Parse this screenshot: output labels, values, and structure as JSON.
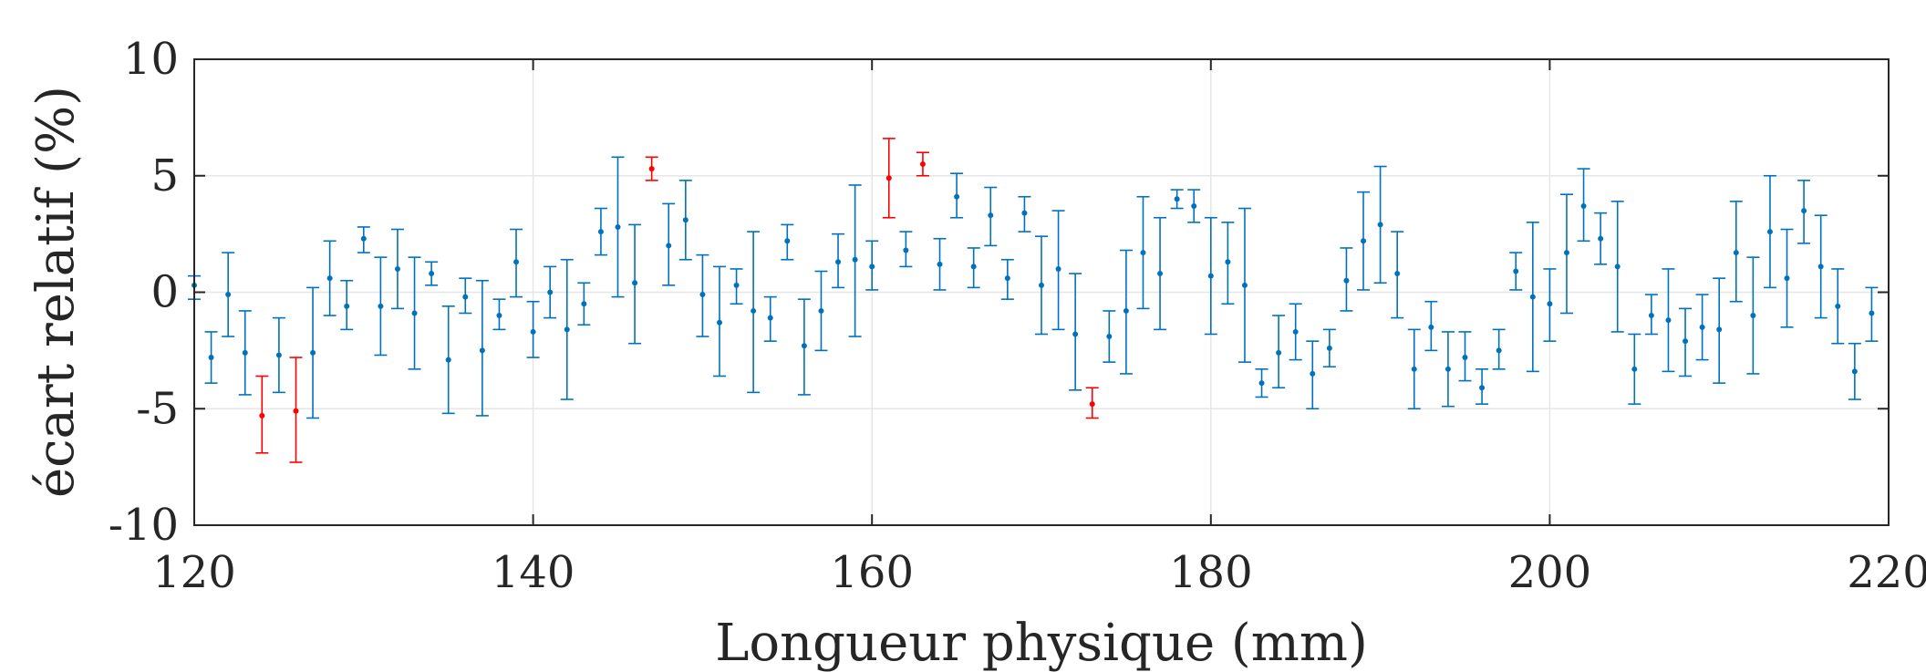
{
  "chart_data": {
    "type": "scatter",
    "title": "",
    "xlabel": "Longueur physique (mm)",
    "ylabel": "écart relatif (%)",
    "xlim": [
      120,
      220
    ],
    "ylim": [
      -10,
      10
    ],
    "xticks": [
      "120",
      "140",
      "160",
      "180",
      "200",
      "220"
    ],
    "yticks": [
      "10",
      "5",
      "0",
      "-5",
      "-10"
    ],
    "grid": true,
    "legend": "none",
    "error_bars": true,
    "series": [
      {
        "color": "#0072BD",
        "points": [
          {
            "x": 120,
            "y": 0.3,
            "lo": -0.3,
            "hi": 0.7
          },
          {
            "x": 121,
            "y": -2.8,
            "lo": -3.9,
            "hi": -1.7
          },
          {
            "x": 122,
            "y": -0.1,
            "lo": -1.9,
            "hi": 1.7
          },
          {
            "x": 123,
            "y": -2.6,
            "lo": -4.4,
            "hi": -0.8
          },
          {
            "x": 125,
            "y": -2.7,
            "lo": -4.3,
            "hi": -1.1
          },
          {
            "x": 127,
            "y": -2.6,
            "lo": -5.4,
            "hi": 0.2
          },
          {
            "x": 128,
            "y": 0.6,
            "lo": -1.0,
            "hi": 2.2
          },
          {
            "x": 129,
            "y": -0.6,
            "lo": -1.6,
            "hi": 0.5
          },
          {
            "x": 130,
            "y": 2.3,
            "lo": 1.7,
            "hi": 2.8
          },
          {
            "x": 131,
            "y": -0.6,
            "lo": -2.7,
            "hi": 1.5
          },
          {
            "x": 132,
            "y": 1.0,
            "lo": -0.7,
            "hi": 2.7
          },
          {
            "x": 133,
            "y": -0.9,
            "lo": -3.3,
            "hi": 1.5
          },
          {
            "x": 134,
            "y": 0.8,
            "lo": 0.3,
            "hi": 1.3
          },
          {
            "x": 135,
            "y": -2.9,
            "lo": -5.2,
            "hi": -0.6
          },
          {
            "x": 136,
            "y": -0.2,
            "lo": -0.9,
            "hi": 0.6
          },
          {
            "x": 137,
            "y": -2.5,
            "lo": -5.3,
            "hi": 0.5
          },
          {
            "x": 138,
            "y": -1.0,
            "lo": -1.6,
            "hi": -0.3
          },
          {
            "x": 139,
            "y": 1.3,
            "lo": -0.2,
            "hi": 2.7
          },
          {
            "x": 140,
            "y": -1.7,
            "lo": -2.8,
            "hi": -0.4
          },
          {
            "x": 141,
            "y": 0.0,
            "lo": -1.1,
            "hi": 1.1
          },
          {
            "x": 142,
            "y": -1.6,
            "lo": -4.6,
            "hi": 1.4
          },
          {
            "x": 143,
            "y": -0.5,
            "lo": -1.4,
            "hi": 0.4
          },
          {
            "x": 144,
            "y": 2.6,
            "lo": 1.6,
            "hi": 3.6
          },
          {
            "x": 145,
            "y": 2.8,
            "lo": -0.2,
            "hi": 5.8
          },
          {
            "x": 146,
            "y": 0.4,
            "lo": -2.2,
            "hi": 2.9
          },
          {
            "x": 148,
            "y": 2.0,
            "lo": 0.3,
            "hi": 3.8
          },
          {
            "x": 149,
            "y": 3.1,
            "lo": 1.4,
            "hi": 4.8
          },
          {
            "x": 150,
            "y": -0.1,
            "lo": -1.9,
            "hi": 1.6
          },
          {
            "x": 151,
            "y": -1.3,
            "lo": -3.6,
            "hi": 1.1
          },
          {
            "x": 152,
            "y": 0.3,
            "lo": -0.5,
            "hi": 1.0
          },
          {
            "x": 153,
            "y": -0.8,
            "lo": -4.3,
            "hi": 2.6
          },
          {
            "x": 154,
            "y": -1.1,
            "lo": -2.1,
            "hi": -0.2
          },
          {
            "x": 155,
            "y": 2.2,
            "lo": 1.4,
            "hi": 2.9
          },
          {
            "x": 156,
            "y": -2.3,
            "lo": -4.4,
            "hi": -0.3
          },
          {
            "x": 157,
            "y": -0.8,
            "lo": -2.5,
            "hi": 0.9
          },
          {
            "x": 158,
            "y": 1.3,
            "lo": 0.2,
            "hi": 2.5
          },
          {
            "x": 159,
            "y": 1.4,
            "lo": -1.9,
            "hi": 4.6
          },
          {
            "x": 160,
            "y": 1.1,
            "lo": 0.1,
            "hi": 2.2
          },
          {
            "x": 162,
            "y": 1.8,
            "lo": 1.1,
            "hi": 2.6
          },
          {
            "x": 164,
            "y": 1.2,
            "lo": 0.1,
            "hi": 2.3
          },
          {
            "x": 165,
            "y": 4.1,
            "lo": 3.2,
            "hi": 5.1
          },
          {
            "x": 166,
            "y": 1.1,
            "lo": 0.2,
            "hi": 1.9
          },
          {
            "x": 167,
            "y": 3.3,
            "lo": 2.0,
            "hi": 4.5
          },
          {
            "x": 168,
            "y": 0.6,
            "lo": -0.3,
            "hi": 1.4
          },
          {
            "x": 169,
            "y": 3.4,
            "lo": 2.6,
            "hi": 4.1
          },
          {
            "x": 170,
            "y": 0.3,
            "lo": -1.8,
            "hi": 2.4
          },
          {
            "x": 171,
            "y": 1.0,
            "lo": -1.6,
            "hi": 3.5
          },
          {
            "x": 172,
            "y": -1.8,
            "lo": -4.2,
            "hi": 0.8
          },
          {
            "x": 174,
            "y": -1.9,
            "lo": -3.0,
            "hi": -0.8
          },
          {
            "x": 175,
            "y": -0.8,
            "lo": -3.5,
            "hi": 1.8
          },
          {
            "x": 176,
            "y": 1.7,
            "lo": -0.7,
            "hi": 4.1
          },
          {
            "x": 177,
            "y": 0.8,
            "lo": -1.6,
            "hi": 3.2
          },
          {
            "x": 178,
            "y": 4.0,
            "lo": 3.6,
            "hi": 4.4
          },
          {
            "x": 179,
            "y": 3.7,
            "lo": 3.0,
            "hi": 4.4
          },
          {
            "x": 180,
            "y": 0.7,
            "lo": -1.8,
            "hi": 3.2
          },
          {
            "x": 181,
            "y": 1.3,
            "lo": -0.5,
            "hi": 3.0
          },
          {
            "x": 182,
            "y": 0.3,
            "lo": -3.0,
            "hi": 3.6
          },
          {
            "x": 183,
            "y": -3.9,
            "lo": -4.5,
            "hi": -3.3
          },
          {
            "x": 184,
            "y": -2.6,
            "lo": -4.1,
            "hi": -1.0
          },
          {
            "x": 185,
            "y": -1.7,
            "lo": -2.9,
            "hi": -0.5
          },
          {
            "x": 186,
            "y": -3.5,
            "lo": -5.0,
            "hi": -2.1
          },
          {
            "x": 187,
            "y": -2.4,
            "lo": -3.2,
            "hi": -1.6
          },
          {
            "x": 188,
            "y": 0.5,
            "lo": -0.8,
            "hi": 1.9
          },
          {
            "x": 189,
            "y": 2.2,
            "lo": 0.1,
            "hi": 4.3
          },
          {
            "x": 190,
            "y": 2.9,
            "lo": 0.4,
            "hi": 5.4
          },
          {
            "x": 191,
            "y": 0.8,
            "lo": -1.1,
            "hi": 2.6
          },
          {
            "x": 192,
            "y": -3.3,
            "lo": -5.0,
            "hi": -1.6
          },
          {
            "x": 193,
            "y": -1.5,
            "lo": -2.5,
            "hi": -0.4
          },
          {
            "x": 194,
            "y": -3.3,
            "lo": -4.9,
            "hi": -1.7
          },
          {
            "x": 195,
            "y": -2.8,
            "lo": -3.8,
            "hi": -1.7
          },
          {
            "x": 196,
            "y": -4.1,
            "lo": -4.8,
            "hi": -3.3
          },
          {
            "x": 197,
            "y": -2.5,
            "lo": -3.3,
            "hi": -1.6
          },
          {
            "x": 198,
            "y": 0.9,
            "lo": 0.1,
            "hi": 1.7
          },
          {
            "x": 199,
            "y": -0.2,
            "lo": -3.4,
            "hi": 3.0
          },
          {
            "x": 200,
            "y": -0.5,
            "lo": -2.1,
            "hi": 1.0
          },
          {
            "x": 201,
            "y": 1.7,
            "lo": -0.9,
            "hi": 4.2
          },
          {
            "x": 202,
            "y": 3.7,
            "lo": 2.2,
            "hi": 5.3
          },
          {
            "x": 203,
            "y": 2.3,
            "lo": 1.2,
            "hi": 3.4
          },
          {
            "x": 204,
            "y": 1.1,
            "lo": -1.7,
            "hi": 3.9
          },
          {
            "x": 205,
            "y": -3.3,
            "lo": -4.8,
            "hi": -1.8
          },
          {
            "x": 206,
            "y": -1.0,
            "lo": -1.8,
            "hi": -0.1
          },
          {
            "x": 207,
            "y": -1.2,
            "lo": -3.4,
            "hi": 1.0
          },
          {
            "x": 208,
            "y": -2.1,
            "lo": -3.6,
            "hi": -0.7
          },
          {
            "x": 209,
            "y": -1.5,
            "lo": -2.9,
            "hi": -0.1
          },
          {
            "x": 210,
            "y": -1.6,
            "lo": -3.9,
            "hi": 0.6
          },
          {
            "x": 211,
            "y": 1.7,
            "lo": -0.4,
            "hi": 3.9
          },
          {
            "x": 212,
            "y": -1.0,
            "lo": -3.5,
            "hi": 1.5
          },
          {
            "x": 213,
            "y": 2.6,
            "lo": 0.2,
            "hi": 5.0
          },
          {
            "x": 214,
            "y": 0.6,
            "lo": -1.5,
            "hi": 2.7
          },
          {
            "x": 215,
            "y": 3.5,
            "lo": 2.1,
            "hi": 4.8
          },
          {
            "x": 216,
            "y": 1.1,
            "lo": -1.1,
            "hi": 3.3
          },
          {
            "x": 217,
            "y": -0.6,
            "lo": -2.2,
            "hi": 1.0
          },
          {
            "x": 218,
            "y": -3.4,
            "lo": -4.6,
            "hi": -2.2
          },
          {
            "x": 219,
            "y": -0.9,
            "lo": -2.1,
            "hi": 0.2
          }
        ]
      },
      {
        "color": "#FF0000",
        "points": [
          {
            "x": 124,
            "y": -5.3,
            "lo": -6.9,
            "hi": -3.6
          },
          {
            "x": 126,
            "y": -5.1,
            "lo": -7.3,
            "hi": -2.8
          },
          {
            "x": 147,
            "y": 5.3,
            "lo": 4.8,
            "hi": 5.8
          },
          {
            "x": 161,
            "y": 4.9,
            "lo": 3.2,
            "hi": 6.6
          },
          {
            "x": 163,
            "y": 5.5,
            "lo": 5.0,
            "hi": 6.0
          },
          {
            "x": 173,
            "y": -4.8,
            "lo": -5.4,
            "hi": -4.1
          }
        ]
      }
    ]
  }
}
